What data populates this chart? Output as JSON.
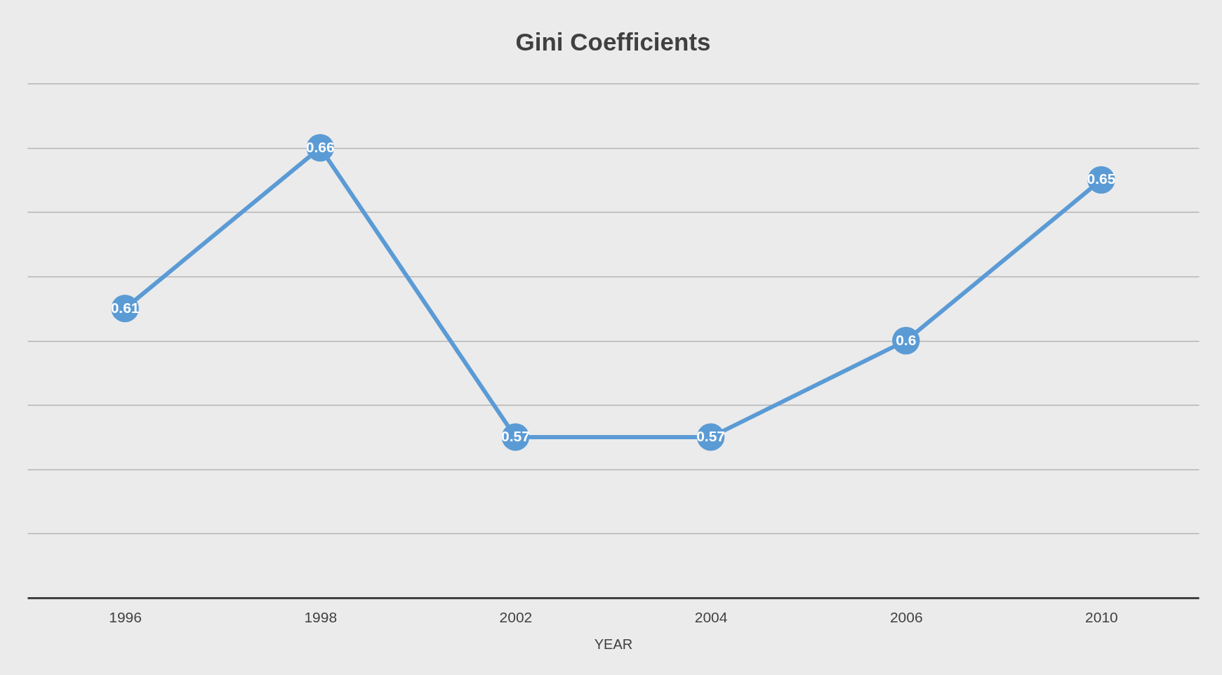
{
  "chart_data": {
    "type": "line",
    "title": "Gini Coefficients",
    "xlabel": "YEAR",
    "categories": [
      "1996",
      "1998",
      "2002",
      "2004",
      "2006",
      "2010"
    ],
    "series": [
      {
        "color": "#5b9bd5",
        "values": [
          0.61,
          0.66,
          0.57,
          0.57,
          0.6,
          0.65
        ]
      }
    ],
    "ylim": [
      0.52,
      0.68
    ],
    "yticks": [
      {
        "value": 0.52,
        "label": null
      },
      {
        "value": 0.54,
        "label": null
      },
      {
        "value": 0.56,
        "label": null
      },
      {
        "value": 0.58,
        "label": null
      },
      {
        "value": 0.6,
        "label": null
      },
      {
        "value": 0.62,
        "label": null
      },
      {
        "value": 0.64,
        "label": null
      },
      {
        "value": 0.66,
        "label": null
      },
      {
        "value": 0.68,
        "label": null
      }
    ],
    "grid": "y",
    "tick_labels": "x",
    "marker": "circle",
    "line_style": "solid",
    "data_labels": true
  }
}
